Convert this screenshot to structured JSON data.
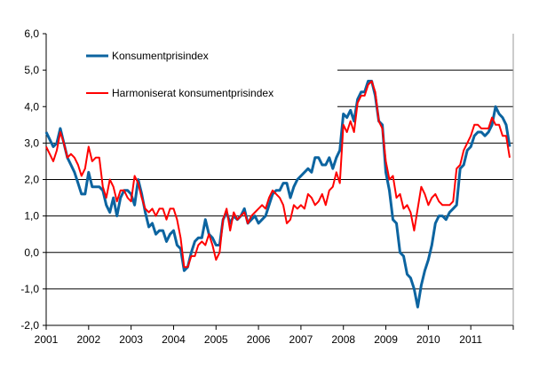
{
  "chart_data": {
    "type": "line",
    "title": "",
    "xlabel": "",
    "ylabel": "",
    "ylim": [
      -2.0,
      6.0
    ],
    "yticks": [
      "6,0",
      "5,0",
      "4,0",
      "3,0",
      "2,0",
      "1,0",
      "0,0",
      "-1,0",
      "-2,0"
    ],
    "xticks": [
      "2001",
      "2002",
      "2003",
      "2004",
      "2005",
      "2006",
      "2007",
      "2008",
      "2009",
      "2010",
      "2011"
    ],
    "x_start": "2001-01",
    "x_frequency": "monthly",
    "grid": "horizontal",
    "legend_position": "top-left",
    "series": [
      {
        "name": "Konsumentprisindex",
        "color": "#0C64A0",
        "values": [
          3.3,
          3.1,
          2.9,
          3.0,
          3.4,
          3.0,
          2.6,
          2.4,
          2.2,
          1.9,
          1.6,
          1.6,
          2.2,
          1.8,
          1.8,
          1.8,
          1.7,
          1.3,
          1.1,
          1.5,
          1.0,
          1.5,
          1.7,
          1.7,
          1.6,
          1.3,
          2.0,
          1.6,
          1.1,
          0.7,
          0.8,
          0.5,
          0.6,
          0.6,
          0.3,
          0.5,
          0.6,
          0.2,
          0.1,
          -0.5,
          -0.4,
          0.0,
          0.3,
          0.4,
          0.4,
          0.9,
          0.5,
          0.4,
          0.2,
          0.2,
          0.9,
          1.1,
          0.8,
          1.0,
          0.9,
          1.0,
          1.2,
          0.8,
          0.9,
          1.0,
          0.8,
          0.9,
          1.0,
          1.3,
          1.6,
          1.7,
          1.7,
          1.9,
          1.9,
          1.5,
          1.8,
          2.0,
          2.1,
          2.2,
          2.3,
          2.2,
          2.6,
          2.6,
          2.4,
          2.4,
          2.6,
          2.3,
          2.6,
          2.8,
          3.8,
          3.7,
          3.9,
          3.6,
          4.2,
          4.4,
          4.4,
          4.7,
          4.7,
          4.3,
          3.6,
          3.5,
          2.2,
          1.7,
          0.9,
          0.8,
          0.0,
          -0.1,
          -0.6,
          -0.7,
          -1.0,
          -1.5,
          -0.9,
          -0.5,
          -0.2,
          0.2,
          0.8,
          1.0,
          1.0,
          0.9,
          1.1,
          1.2,
          1.3,
          2.3,
          2.4,
          2.8,
          2.9,
          3.2,
          3.3,
          3.3,
          3.2,
          3.3,
          3.5,
          4.0,
          3.8,
          3.7,
          3.5,
          2.9
        ]
      },
      {
        "name": "Harmoniserat konsumentprisindex",
        "color": "#FF0000",
        "values": [
          2.9,
          2.7,
          2.5,
          2.8,
          3.3,
          3.0,
          2.6,
          2.7,
          2.6,
          2.4,
          2.1,
          2.3,
          2.9,
          2.5,
          2.6,
          2.6,
          1.8,
          1.5,
          2.0,
          1.8,
          1.4,
          1.7,
          1.7,
          1.5,
          1.4,
          2.1,
          1.9,
          1.5,
          1.2,
          1.1,
          1.2,
          1.0,
          1.2,
          1.2,
          0.9,
          1.2,
          1.2,
          0.9,
          0.4,
          -0.4,
          -0.4,
          -0.1,
          -0.1,
          0.2,
          0.3,
          0.2,
          0.5,
          0.2,
          -0.2,
          0.0,
          0.9,
          1.2,
          0.6,
          1.1,
          0.9,
          1.0,
          1.1,
          0.8,
          1.0,
          1.1,
          1.2,
          1.3,
          1.2,
          1.5,
          1.7,
          1.6,
          1.5,
          1.3,
          0.8,
          0.9,
          1.3,
          1.2,
          1.3,
          1.2,
          1.6,
          1.5,
          1.3,
          1.4,
          1.6,
          1.3,
          1.7,
          1.8,
          2.2,
          1.9,
          3.5,
          3.3,
          3.6,
          3.3,
          4.1,
          4.3,
          4.3,
          4.6,
          4.7,
          4.4,
          3.6,
          3.4,
          2.5,
          2.0,
          2.1,
          1.5,
          1.6,
          1.2,
          1.3,
          1.1,
          0.6,
          1.2,
          1.8,
          1.6,
          1.3,
          1.5,
          1.6,
          1.4,
          1.3,
          1.3,
          1.3,
          1.4,
          2.3,
          2.4,
          2.8,
          3.0,
          3.2,
          3.5,
          3.5,
          3.4,
          3.4,
          3.4,
          3.7,
          3.5,
          3.5,
          3.2,
          3.2,
          2.6
        ]
      }
    ]
  }
}
